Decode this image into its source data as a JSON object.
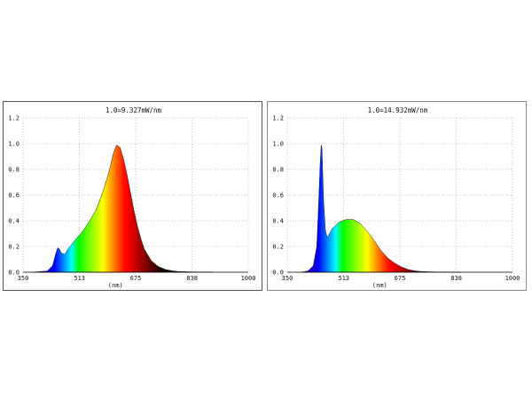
{
  "chart_data": [
    {
      "type": "area",
      "annotation": "1.0=9.327mW/nm",
      "xlabel": "(nm)",
      "ylabel": "",
      "xlim": [
        350,
        1000
      ],
      "ylim": [
        0,
        1.2
      ],
      "xticks": [
        "350",
        "513",
        "675",
        "838",
        "1000"
      ],
      "yticks": [
        "0.0",
        "0.2",
        "0.4",
        "0.6",
        "0.8",
        "1.0",
        "1.2"
      ],
      "grid": true,
      "x": [
        380,
        400,
        420,
        435,
        445,
        450,
        455,
        460,
        470,
        480,
        500,
        520,
        540,
        560,
        580,
        600,
        610,
        620,
        630,
        640,
        650,
        660,
        670,
        680,
        690,
        700,
        720,
        740,
        760,
        780,
        800,
        850,
        900
      ],
      "y": [
        0.0,
        0.005,
        0.01,
        0.05,
        0.15,
        0.19,
        0.18,
        0.15,
        0.14,
        0.18,
        0.25,
        0.31,
        0.39,
        0.48,
        0.62,
        0.8,
        0.92,
        0.99,
        0.97,
        0.88,
        0.76,
        0.62,
        0.48,
        0.36,
        0.26,
        0.18,
        0.09,
        0.045,
        0.022,
        0.011,
        0.005,
        0.002,
        0.0
      ]
    },
    {
      "type": "area",
      "annotation": "1.0=14.932mW/nm",
      "xlabel": "(nm)",
      "ylabel": "",
      "xlim": [
        350,
        1000
      ],
      "ylim": [
        0,
        1.2
      ],
      "xticks": [
        "350",
        "513",
        "675",
        "838",
        "1000"
      ],
      "yticks": [
        "0.0",
        "0.2",
        "0.4",
        "0.6",
        "0.8",
        "1.0",
        "1.2"
      ],
      "grid": true,
      "x": [
        390,
        410,
        425,
        435,
        440,
        445,
        448,
        450,
        452,
        455,
        460,
        465,
        470,
        480,
        500,
        520,
        540,
        560,
        580,
        600,
        620,
        640,
        660,
        680,
        700,
        720,
        740,
        760,
        780,
        800,
        850
      ],
      "y": [
        0.0,
        0.01,
        0.05,
        0.2,
        0.5,
        0.85,
        0.99,
        0.97,
        0.8,
        0.55,
        0.33,
        0.27,
        0.29,
        0.34,
        0.39,
        0.41,
        0.41,
        0.38,
        0.32,
        0.25,
        0.17,
        0.11,
        0.07,
        0.04,
        0.02,
        0.01,
        0.005,
        0.003,
        0.002,
        0.001,
        0.0
      ]
    }
  ]
}
